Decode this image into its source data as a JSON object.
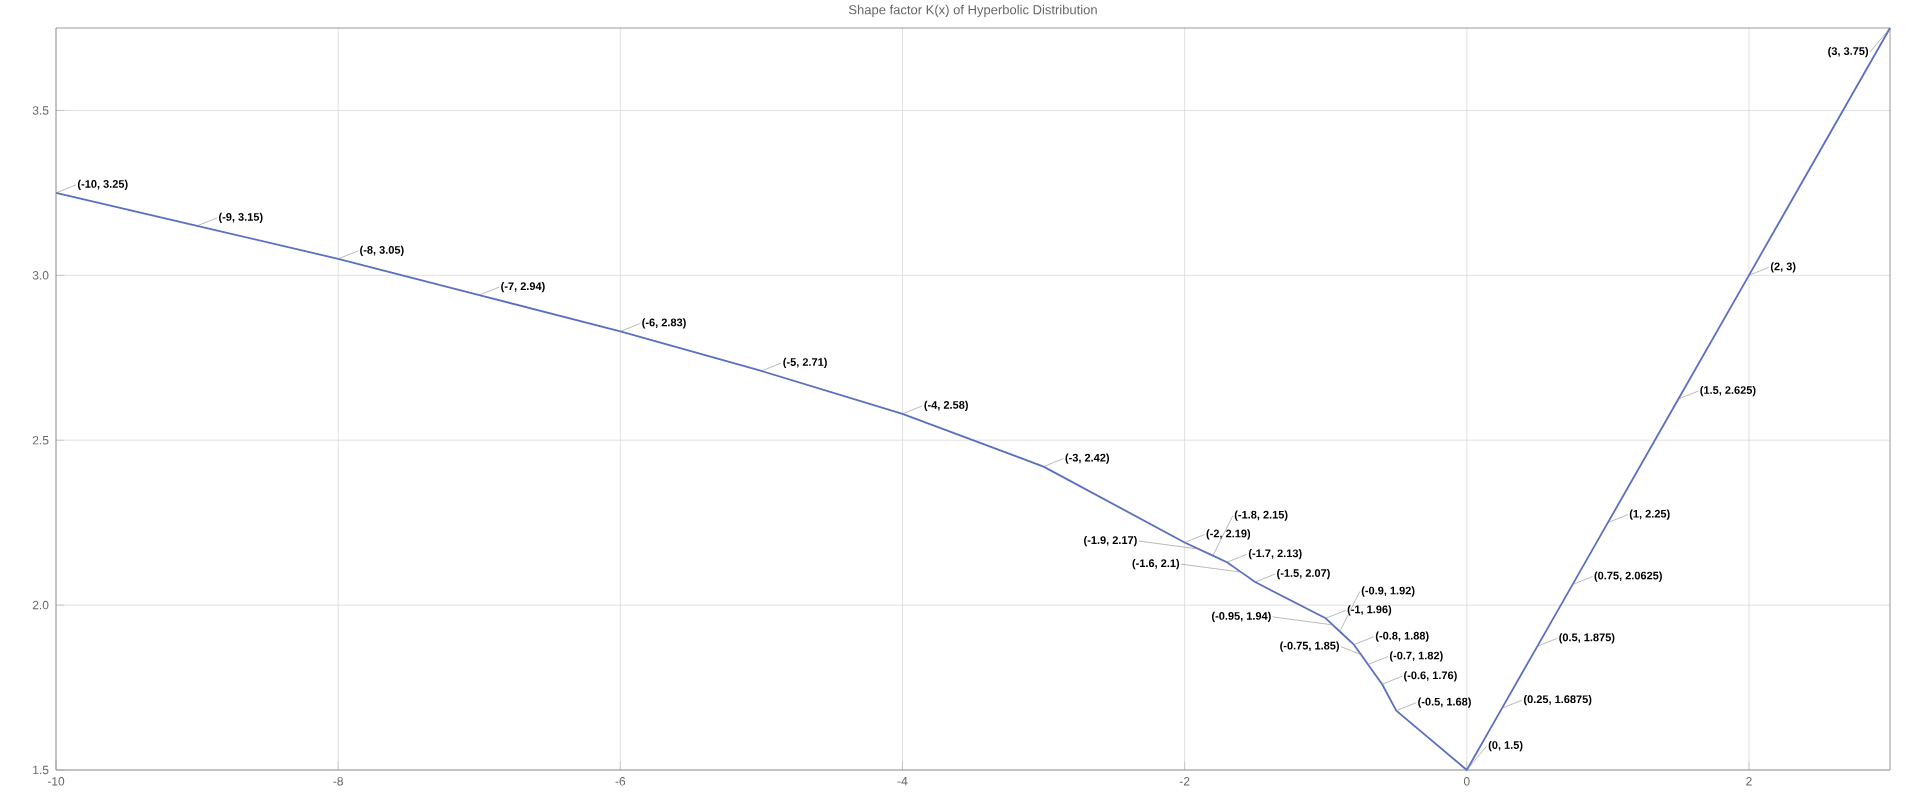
{
  "chart_data": {
    "type": "line",
    "title": "Shape factor K(x) of Hyperbolic Distribution",
    "x": [
      -10,
      -9,
      -8,
      -7,
      -6,
      -5,
      -4,
      -3,
      -2,
      -1.9,
      -1.8,
      -1.7,
      -1.6,
      -1.5,
      -1,
      -0.95,
      -0.9,
      -0.8,
      -0.75,
      -0.7,
      -0.6,
      -0.5,
      0,
      0.25,
      0.5,
      0.75,
      1,
      1.5,
      2,
      3
    ],
    "values": [
      3.25,
      3.15,
      3.05,
      2.94,
      2.83,
      2.71,
      2.58,
      2.42,
      2.19,
      2.17,
      2.15,
      2.13,
      2.1,
      2.07,
      1.96,
      1.94,
      1.92,
      1.88,
      1.85,
      1.82,
      1.76,
      1.68,
      1.5,
      1.6875,
      1.875,
      2.0625,
      2.25,
      2.625,
      3,
      3.75
    ],
    "value_labels": [
      "(-10, 3.25)",
      "(-9, 3.15)",
      "(-8, 3.05)",
      "(-7, 2.94)",
      "(-6, 2.83)",
      "(-5, 2.71)",
      "(-4, 2.58)",
      "(-3, 2.42)",
      "(-2, 2.19)",
      "(-1.9, 2.17)",
      "(-1.8, 2.15)",
      "(-1.7, 2.13)",
      "(-1.6, 2.1)",
      "(-1.5, 2.07)",
      "(-1, 1.96)",
      "(-0.95, 1.94)",
      "(-0.9, 1.92)",
      "(-0.8, 1.88)",
      "(-0.75, 1.85)",
      "(-0.7, 1.82)",
      "(-0.6, 1.76)",
      "(-0.5, 1.68)",
      "(0, 1.5)",
      "(0.25, 1.6875)",
      "(0.5, 1.875)",
      "(0.75, 2.0625)",
      "(1, 2.25)",
      "(1.5, 2.625)",
      "(2, 3)",
      "(3, 3.75)"
    ],
    "color": "#5a6fc0",
    "marker": "none",
    "line_style": "solid",
    "grid": true,
    "xlim": [
      -10,
      3
    ],
    "ylim": [
      1.5,
      3.75
    ],
    "xticks": [
      -10,
      -8,
      -6,
      -4,
      -2,
      0,
      2
    ],
    "yticks": [
      1.5,
      {
        "value": 2,
        "label": "2.0"
      },
      2.5,
      {
        "value": 3,
        "label": "3.0"
      },
      3.5
    ]
  }
}
